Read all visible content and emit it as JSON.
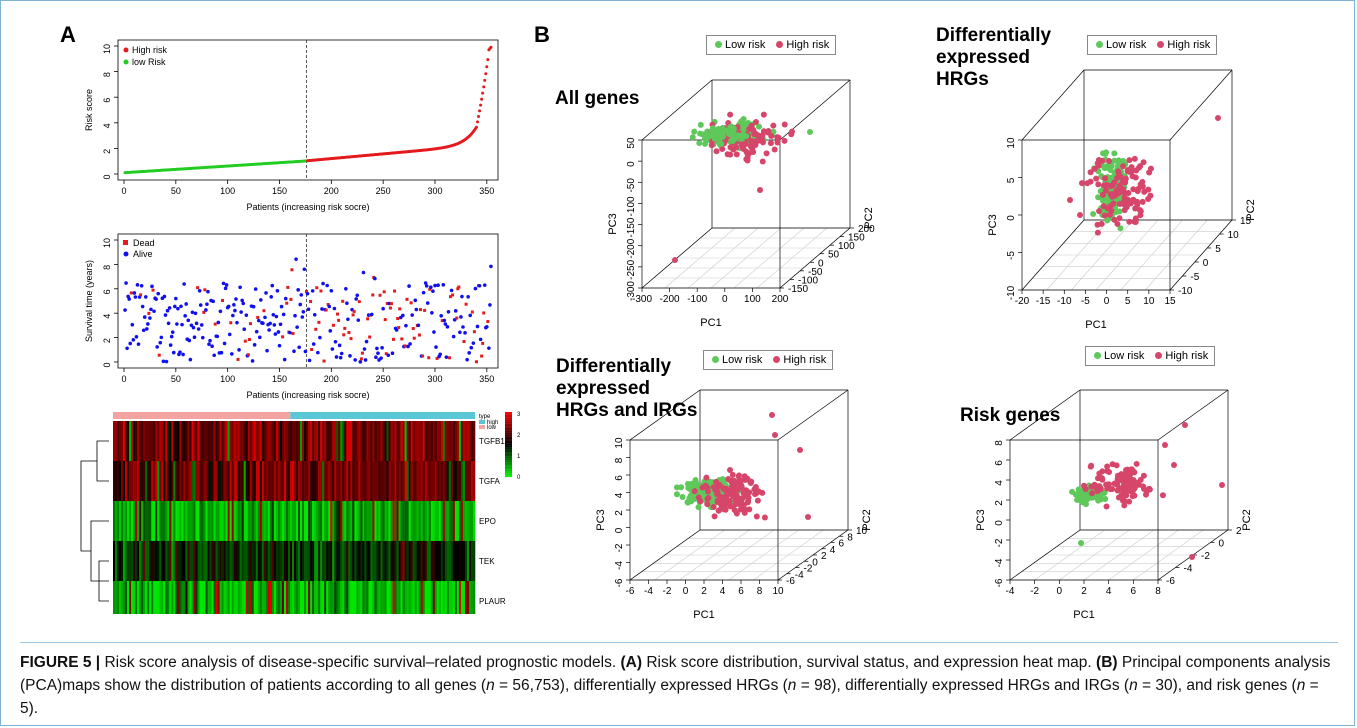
{
  "panel_labels": {
    "a": "A",
    "b": "B"
  },
  "colors": {
    "red": "#e41a1c",
    "green": "#22cc22",
    "blue": "#1010ee",
    "pca_low": "#5ec95a",
    "pca_high": "#d6456a",
    "bar_high": "#5bc7d6",
    "bar_low": "#f4a3a3"
  },
  "chart_data": [
    {
      "type": "scatter",
      "id": "risk-score",
      "ylabel": "Risk score",
      "xlabel": "Patients (increasing risk socre)",
      "xlim": [
        0,
        355
      ],
      "ylim": [
        0,
        10
      ],
      "xticks": [
        "0",
        "50",
        "100",
        "150",
        "200",
        "250",
        "300",
        "350"
      ],
      "yticks": [
        "0",
        "2",
        "4",
        "6",
        "8",
        "10"
      ],
      "cutoff_x": 176,
      "legend": [
        "High risk",
        "low Risk"
      ],
      "series": [
        {
          "name": "low Risk",
          "x_range": [
            1,
            176
          ],
          "y_range": [
            0.1,
            1.02
          ]
        },
        {
          "name": "High risk",
          "x_range": [
            177,
            354
          ],
          "y_range": [
            1.03,
            9.9
          ]
        }
      ]
    },
    {
      "type": "scatter",
      "id": "survival-time",
      "ylabel": "Survival time (years)",
      "xlabel": "Patients (increasing risk socre)",
      "xlim": [
        0,
        355
      ],
      "ylim": [
        0,
        10
      ],
      "xticks": [
        "0",
        "50",
        "100",
        "150",
        "200",
        "250",
        "300",
        "350"
      ],
      "yticks": [
        "0",
        "2",
        "4",
        "6",
        "8",
        "10"
      ],
      "cutoff_x": 176,
      "legend": [
        "Dead",
        "Alive"
      ],
      "series": [
        {
          "name": "Dead"
        },
        {
          "name": "Alive"
        }
      ]
    },
    {
      "type": "heatmap",
      "id": "expression-heatmap",
      "rows": [
        "TGFB1",
        "TGFA",
        "EPO",
        "TEK",
        "PLAUR"
      ],
      "legend_title": "type",
      "groups": [
        "high",
        "low"
      ],
      "scale_ticks": [
        "3",
        "2",
        "1",
        "0"
      ]
    },
    {
      "type": "scatter",
      "id": "pca-all-genes",
      "title": "All genes",
      "xlabel": "PC1",
      "ylabel": "PC3",
      "zlabel": "PC2",
      "legend": [
        "Low risk",
        "High risk"
      ],
      "xticks": [
        "-300",
        "-200",
        "-100",
        "0",
        "100",
        "200"
      ],
      "zticks": [
        "-150",
        "-100",
        "-50",
        "0",
        "50",
        "100",
        "150",
        "200"
      ],
      "yticks": [
        "-300",
        "-250",
        "-200",
        "-150",
        "-100",
        "-50",
        "0",
        "50"
      ]
    },
    {
      "type": "scatter",
      "id": "pca-hrgs",
      "title": "Differentially\nexpressed\nHRGs",
      "xlabel": "PC1",
      "ylabel": "PC3",
      "zlabel": "PC2",
      "legend": [
        "Low risk",
        "High risk"
      ],
      "xticks": [
        "-20",
        "-15",
        "-10",
        "-5",
        "0",
        "5",
        "10",
        "15"
      ],
      "zticks": [
        "-10",
        "-5",
        "0",
        "5",
        "10",
        "15"
      ],
      "yticks": [
        "-10",
        "-5",
        "0",
        "5",
        "10"
      ]
    },
    {
      "type": "scatter",
      "id": "pca-hrgs-irgs",
      "title": "Differentially\nexpressed\nHRGs and IRGs",
      "xlabel": "PC1",
      "ylabel": "PC3",
      "zlabel": "PC2",
      "legend": [
        "Low risk",
        "High risk"
      ],
      "xticks": [
        "-6",
        "-4",
        "-2",
        "0",
        "2",
        "4",
        "6",
        "8",
        "10"
      ],
      "zticks": [
        "-6",
        "-4",
        "-2",
        "0",
        "2",
        "4",
        "6",
        "8",
        "10"
      ],
      "yticks": [
        "-6",
        "-4",
        "-2",
        "0",
        "2",
        "4",
        "6",
        "8",
        "10"
      ]
    },
    {
      "type": "scatter",
      "id": "pca-risk-genes",
      "title": "Risk genes",
      "xlabel": "PC1",
      "ylabel": "PC3",
      "zlabel": "PC2",
      "legend": [
        "Low risk",
        "High risk"
      ],
      "xticks": [
        "-4",
        "-2",
        "0",
        "2",
        "4",
        "6",
        "8"
      ],
      "zticks": [
        "-6",
        "-4",
        "-2",
        "0",
        "2"
      ],
      "yticks": [
        "-6",
        "-4",
        "-2",
        "0",
        "2",
        "4",
        "6",
        "8"
      ]
    }
  ],
  "caption": {
    "fig": "FIGURE 5 |",
    "t1": " Risk score analysis of disease-specific survival–related prognostic models. ",
    "a": "(A)",
    "t2": " Risk score distribution, survival status, and expression heat map. ",
    "b": "(B)",
    "t3": " Principal components analysis (PCA)maps show the distribution of patients according to all genes (",
    "n": "n",
    "v1": " = 56,753), differentially expressed HRGs (",
    "v2": " = 98), differentially expressed HRGs and IRGs (",
    "v3": " = 30), and risk genes (",
    "v4": " = 5)."
  }
}
